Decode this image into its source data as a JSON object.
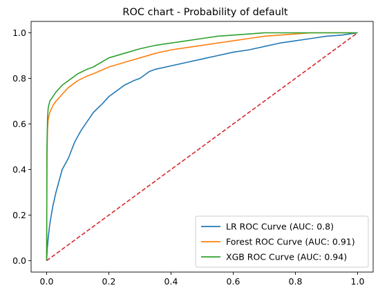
{
  "chart_data": {
    "type": "line",
    "title": "ROC chart - Probability of default",
    "xlabel": "",
    "ylabel": "",
    "xlim": [
      -0.05,
      1.05
    ],
    "ylim": [
      -0.05,
      1.05
    ],
    "xticks": [
      0.0,
      0.2,
      0.4,
      0.6,
      0.8,
      1.0
    ],
    "yticks": [
      0.0,
      0.2,
      0.4,
      0.6,
      0.8,
      1.0
    ],
    "xtick_labels": [
      "0.0",
      "0.2",
      "0.4",
      "0.6",
      "0.8",
      "1.0"
    ],
    "ytick_labels": [
      "0.0",
      "0.2",
      "0.4",
      "0.6",
      "0.8",
      "1.0"
    ],
    "grid": false,
    "legend_position": "lower-right",
    "series": [
      {
        "name": "LR ROC Curve (AUC: 0.8)",
        "color": "#1f77b4",
        "style": "solid",
        "x": [
          0,
          0.002,
          0.005,
          0.01,
          0.02,
          0.03,
          0.05,
          0.07,
          0.09,
          0.11,
          0.13,
          0.15,
          0.18,
          0.2,
          0.22,
          0.25,
          0.28,
          0.3,
          0.33,
          0.35,
          0.4,
          0.45,
          0.5,
          0.55,
          0.6,
          0.65,
          0.7,
          0.75,
          0.8,
          0.85,
          0.9,
          0.95,
          1.0
        ],
        "y": [
          0,
          0.05,
          0.1,
          0.16,
          0.24,
          0.3,
          0.4,
          0.45,
          0.52,
          0.57,
          0.61,
          0.65,
          0.69,
          0.72,
          0.74,
          0.77,
          0.79,
          0.8,
          0.83,
          0.84,
          0.855,
          0.87,
          0.885,
          0.9,
          0.915,
          0.925,
          0.94,
          0.955,
          0.965,
          0.975,
          0.985,
          0.99,
          1.0
        ]
      },
      {
        "name": "Forest ROC Curve (AUC: 0.91)",
        "color": "#ff7f0e",
        "style": "solid",
        "x": [
          0,
          0.001,
          0.003,
          0.005,
          0.01,
          0.02,
          0.03,
          0.05,
          0.07,
          0.1,
          0.13,
          0.15,
          0.2,
          0.25,
          0.3,
          0.35,
          0.4,
          0.45,
          0.5,
          0.55,
          0.6,
          0.65,
          0.7,
          0.75,
          0.8,
          0.85,
          0.9,
          0.95,
          1.0
        ],
        "y": [
          0,
          0.45,
          0.58,
          0.62,
          0.65,
          0.68,
          0.7,
          0.73,
          0.76,
          0.79,
          0.81,
          0.82,
          0.85,
          0.87,
          0.89,
          0.91,
          0.925,
          0.935,
          0.945,
          0.955,
          0.965,
          0.975,
          0.985,
          0.99,
          0.995,
          1.0,
          1.0,
          1.0,
          1.0
        ]
      },
      {
        "name": "XGB ROC Curve (AUC: 0.94)",
        "color": "#2ca02c",
        "style": "solid",
        "x": [
          0,
          0.001,
          0.003,
          0.005,
          0.01,
          0.02,
          0.03,
          0.05,
          0.07,
          0.1,
          0.13,
          0.15,
          0.2,
          0.25,
          0.3,
          0.35,
          0.4,
          0.45,
          0.5,
          0.55,
          0.6,
          0.65,
          0.7,
          0.75,
          0.8,
          0.85,
          0.9,
          0.95,
          1.0
        ],
        "y": [
          0,
          0.5,
          0.63,
          0.67,
          0.7,
          0.72,
          0.74,
          0.77,
          0.79,
          0.82,
          0.84,
          0.85,
          0.89,
          0.91,
          0.93,
          0.945,
          0.955,
          0.965,
          0.975,
          0.985,
          0.99,
          0.995,
          1.0,
          1.0,
          1.0,
          1.0,
          1.0,
          1.0,
          1.0
        ]
      },
      {
        "name": "",
        "color": "#d62728",
        "style": "dashed",
        "x": [
          0,
          1
        ],
        "y": [
          0,
          1
        ]
      }
    ]
  }
}
